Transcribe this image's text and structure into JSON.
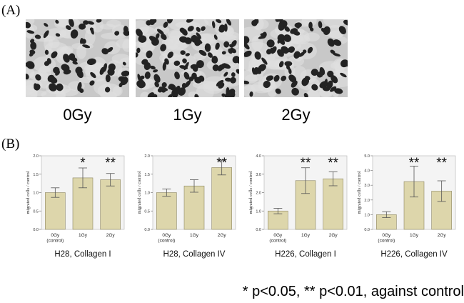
{
  "panel_a": {
    "label": "(A)",
    "images": [
      {
        "dose": "0Gy"
      },
      {
        "dose": "1Gy"
      },
      {
        "dose": "2Gy"
      }
    ]
  },
  "panel_b": {
    "label": "(B)"
  },
  "chart_data": [
    {
      "type": "bar",
      "title": "H28, Collagen I",
      "ylabel": "migrated cells / control",
      "categories": [
        "0Gy\n(control)",
        "1Gy",
        "2Gy"
      ],
      "values": [
        1.0,
        1.4,
        1.35
      ],
      "errors": [
        0.13,
        0.27,
        0.17
      ],
      "significance": [
        "",
        "*",
        "**"
      ],
      "ylim": [
        0,
        2.0
      ],
      "yticks": [
        "0.0",
        "0.5",
        "1.0",
        "1.5",
        "2.0"
      ]
    },
    {
      "type": "bar",
      "title": "H28, Collagen IV",
      "ylabel": "migrated cells / control",
      "categories": [
        "0Gy\n(control)",
        "1Gy",
        "2Gy"
      ],
      "values": [
        1.0,
        1.18,
        1.68
      ],
      "errors": [
        0.1,
        0.17,
        0.2
      ],
      "significance": [
        "",
        "",
        "**"
      ],
      "ylim": [
        0,
        2.0
      ],
      "yticks": [
        "0.0",
        "0.5",
        "1.0",
        "1.5",
        "2.0"
      ]
    },
    {
      "type": "bar",
      "title": "H226, Collagen I",
      "ylabel": "migrated cells / control",
      "categories": [
        "0Gy\n(control)",
        "1Gy",
        "2Gy"
      ],
      "values": [
        1.0,
        2.65,
        2.75
      ],
      "errors": [
        0.15,
        0.7,
        0.38
      ],
      "significance": [
        "",
        "**",
        "**"
      ],
      "ylim": [
        0,
        4.0
      ],
      "yticks": [
        "0.0",
        "1.0",
        "2.0",
        "3.0",
        "4.0"
      ]
    },
    {
      "type": "bar",
      "title": "H226, Collagen IV",
      "ylabel": "migrated cells / control",
      "categories": [
        "0Gy\n(control)",
        "1Gy",
        "2Gy"
      ],
      "values": [
        1.0,
        3.25,
        2.6
      ],
      "errors": [
        0.2,
        1.05,
        0.7
      ],
      "significance": [
        "",
        "**",
        "**"
      ],
      "ylim": [
        0,
        5.0
      ],
      "yticks": [
        "0.0",
        "1.0",
        "2.0",
        "3.0",
        "4.0",
        "5.0"
      ]
    }
  ],
  "footnote": "* p<0.05, ** p<0.01, against control",
  "colors": {
    "bar_fill": "#ddd6ab",
    "bar_stroke": "#8d8663",
    "plot_bg": "#f4f4f4",
    "micro_bg": "#c8c8c8",
    "cell": "#232323"
  }
}
